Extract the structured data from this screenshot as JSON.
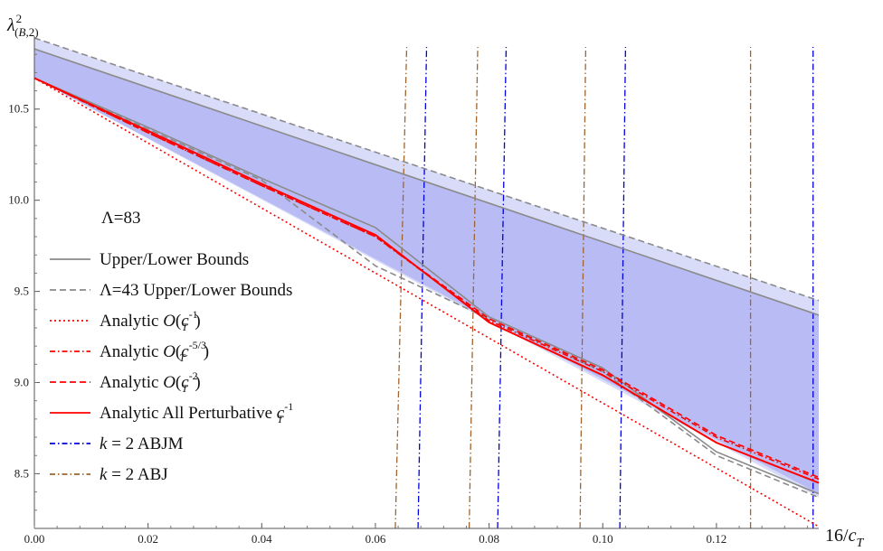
{
  "chart_data": {
    "type": "line",
    "xlabel": "16/c_T",
    "ylabel": "λ²(B,2)",
    "xlim": [
      0,
      0.138
    ],
    "ylim": [
      8.2,
      10.9
    ],
    "x_ticks": [
      "0.00",
      "0.02",
      "0.04",
      "0.06",
      "0.08",
      "0.10",
      "0.12"
    ],
    "x_tick_values": [
      0,
      0.02,
      0.04,
      0.06,
      0.08,
      0.1,
      0.12
    ],
    "y_ticks": [
      "8.5",
      "9.0",
      "9.5",
      "10.0",
      "10.5"
    ],
    "y_tick_values": [
      8.5,
      9.0,
      9.5,
      10.0,
      10.5
    ],
    "regions": [
      {
        "name": "Λ=43 band",
        "x": [
          0,
          0.138
        ],
        "upper": [
          10.89,
          9.45
        ],
        "lower": [
          10.67,
          8.37
        ],
        "color": "#d9dcf8"
      },
      {
        "name": "Λ=83 band",
        "x": [
          0,
          0.138
        ],
        "upper": [
          10.83,
          9.37
        ],
        "lower": [
          10.67,
          8.39
        ],
        "color": "#b9bcf4"
      }
    ],
    "series": [
      {
        "name": "Upper/Lower Bounds",
        "legend": "Upper/Lower Bounds",
        "style": "solid",
        "color": "#8a8a8a",
        "x": [
          0,
          0.138
        ],
        "y": [
          10.83,
          9.37
        ]
      },
      {
        "style": "solid",
        "color": "#8a8a8a",
        "x": [
          0,
          0.02,
          0.04,
          0.06,
          0.08,
          0.1,
          0.12,
          0.138
        ],
        "y": [
          10.67,
          10.4,
          10.12,
          9.85,
          9.36,
          9.08,
          8.62,
          8.39
        ]
      },
      {
        "name": "Λ=43 Upper/Lower Bounds",
        "legend": "Λ=43 Upper/Lower Bounds",
        "style": "dashed",
        "color": "#8a8a8a",
        "x": [
          0,
          0.138
        ],
        "y": [
          10.89,
          9.45
        ]
      },
      {
        "style": "dashed",
        "color": "#8a8a8a",
        "x": [
          0,
          0.02,
          0.04,
          0.06,
          0.08,
          0.1,
          0.12,
          0.138
        ],
        "y": [
          10.67,
          10.39,
          10.11,
          9.64,
          9.35,
          9.06,
          8.6,
          8.37
        ]
      },
      {
        "name": "Analytic O(c_T^-1)",
        "legend": "Analytic O(c_T^{-1})",
        "style": "dotted",
        "color": "#ff0000",
        "x": [
          0,
          0.138
        ],
        "y": [
          10.67,
          8.21
        ]
      },
      {
        "name": "Analytic O(c_T^-5/3)",
        "legend": "Analytic O(c_T^{-5/3})",
        "style": "dashdot",
        "color": "#ff0000",
        "x": [
          0,
          0.02,
          0.04,
          0.06,
          0.08,
          0.1,
          0.12,
          0.138
        ],
        "y": [
          10.67,
          10.37,
          10.08,
          9.8,
          9.34,
          9.06,
          8.7,
          8.47
        ]
      },
      {
        "name": "Analytic O(c_T^-2)",
        "legend": "Analytic O(c_T^{-2})",
        "style": "dashed",
        "color": "#ff0000",
        "x": [
          0,
          0.02,
          0.04,
          0.06,
          0.08,
          0.1,
          0.12,
          0.138
        ],
        "y": [
          10.67,
          10.37,
          10.08,
          9.8,
          9.35,
          9.07,
          8.71,
          8.48
        ]
      },
      {
        "name": "Analytic All Perturbative c_T^-1",
        "legend": "Analytic All Perturbative c_T^{-1}",
        "style": "solid",
        "color": "#ff0000",
        "x": [
          0,
          0.02,
          0.04,
          0.06,
          0.08,
          0.1,
          0.12,
          0.138
        ],
        "y": [
          10.67,
          10.38,
          10.09,
          9.81,
          9.33,
          9.04,
          8.67,
          8.45
        ]
      }
    ],
    "vertical_lines": [
      {
        "group": "k = 2 ABJM",
        "color": "#0000dd",
        "x": [
          0.0675,
          0.0815,
          0.103,
          0.137
        ],
        "top_x": [
          0.069,
          0.083,
          0.104,
          0.137
        ]
      },
      {
        "group": "k = 2 ABJ",
        "color": "#a0642c",
        "x": [
          0.0635,
          0.0765,
          0.096,
          0.126
        ],
        "top_x": [
          0.0655,
          0.078,
          0.097,
          0.126
        ]
      }
    ],
    "legend": {
      "placement": "center-left",
      "header": "Λ=83",
      "entries": [
        {
          "label_parts": [
            "Upper/Lower Bounds"
          ],
          "style": "solid",
          "color": "#8a8a8a"
        },
        {
          "label_parts": [
            "Λ=43 Upper/Lower Bounds"
          ],
          "style": "dashed",
          "color": "#8a8a8a"
        },
        {
          "label_parts": [
            "Analytic ",
            "O(c",
            "T",
            "-1",
            ")"
          ],
          "style": "dotted",
          "color": "#ff0000"
        },
        {
          "label_parts": [
            "Analytic ",
            "O(c",
            "T",
            "-5/3",
            ")"
          ],
          "style": "dashdot",
          "color": "#ff0000"
        },
        {
          "label_parts": [
            "Analytic ",
            "O(c",
            "T",
            "-2",
            ")"
          ],
          "style": "dashed",
          "color": "#ff0000"
        },
        {
          "label_parts": [
            "Analytic All Perturbative ",
            "c",
            "T",
            "-1",
            ""
          ],
          "style": "solid",
          "color": "#ff0000"
        },
        {
          "label_parts": [
            "k",
            " = 2 ABJM"
          ],
          "style": "dashdot",
          "color": "#0000dd"
        },
        {
          "label_parts": [
            "k",
            " = 2 ABJ"
          ],
          "style": "dashdot",
          "color": "#a0642c"
        }
      ]
    }
  }
}
